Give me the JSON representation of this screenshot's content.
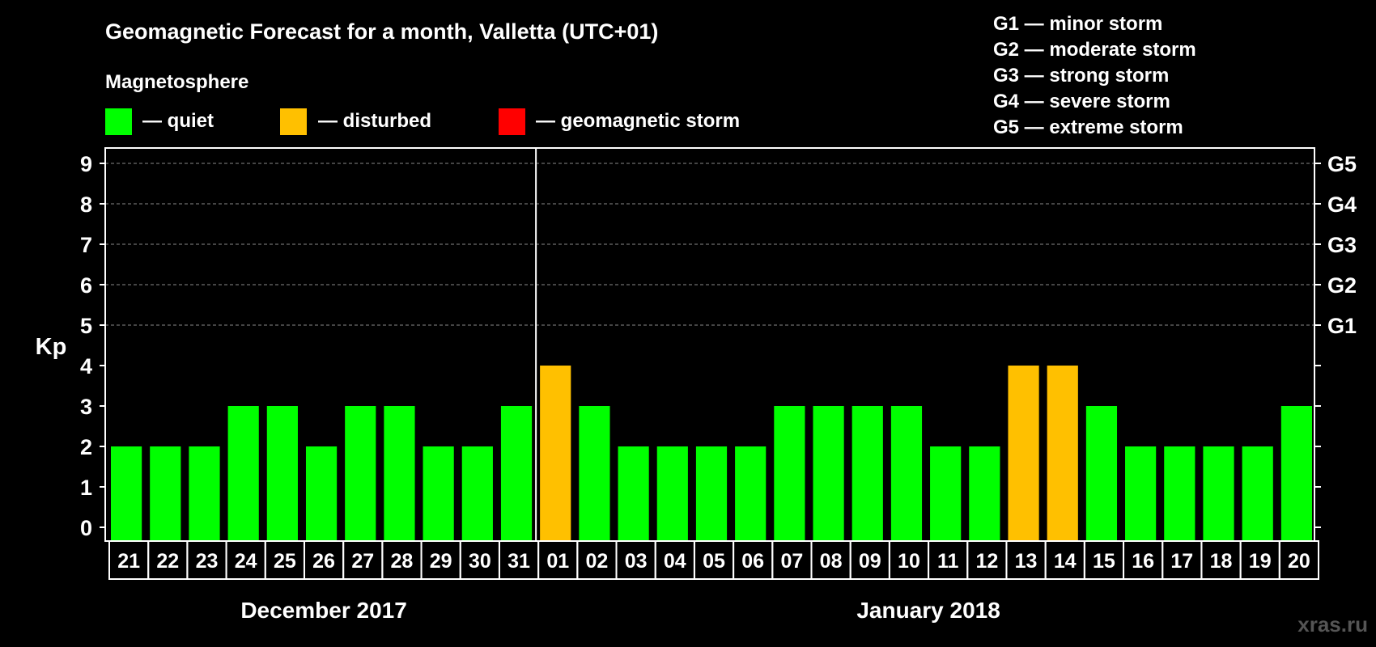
{
  "chart_data": {
    "type": "bar",
    "title": "Geomagnetic Forecast for a month, Valletta (UTC+01)",
    "legend_title": "Magnetosphere",
    "legend": [
      {
        "label": "— quiet",
        "color": "#00ff00"
      },
      {
        "label": "— disturbed",
        "color": "#ffc000"
      },
      {
        "label": "— geomagnetic storm",
        "color": "#ff0000"
      }
    ],
    "storm_scale": [
      "G1 — minor storm",
      "G2 — moderate storm",
      "G3 — strong storm",
      "G4 — severe storm",
      "G5 — extreme storm"
    ],
    "ylabel": "Kp",
    "ylim": [
      0,
      9
    ],
    "y_ticks": [
      "0",
      "1",
      "2",
      "3",
      "4",
      "5",
      "6",
      "7",
      "8",
      "9"
    ],
    "right_axis_labels": [
      {
        "kp": 5,
        "label": "G1"
      },
      {
        "kp": 6,
        "label": "G2"
      },
      {
        "kp": 7,
        "label": "G3"
      },
      {
        "kp": 8,
        "label": "G4"
      },
      {
        "kp": 9,
        "label": "G5"
      }
    ],
    "categories": [
      "21",
      "22",
      "23",
      "24",
      "25",
      "26",
      "27",
      "28",
      "29",
      "30",
      "31",
      "01",
      "02",
      "03",
      "04",
      "05",
      "06",
      "07",
      "08",
      "09",
      "10",
      "11",
      "12",
      "13",
      "14",
      "15",
      "16",
      "17",
      "18",
      "19",
      "20"
    ],
    "values": [
      2,
      2,
      2,
      3,
      3,
      2,
      3,
      3,
      2,
      2,
      3,
      4,
      3,
      2,
      2,
      2,
      2,
      3,
      3,
      3,
      3,
      2,
      2,
      4,
      4,
      3,
      2,
      2,
      2,
      2,
      3
    ],
    "months": [
      {
        "label": "December 2017",
        "first_index": 0,
        "last_index": 10
      },
      {
        "label": "January 2018",
        "first_index": 11,
        "last_index": 30
      }
    ],
    "month_divider_after_index": 10,
    "color_thresholds": {
      "quiet_below": 4,
      "storm_from": 5
    },
    "grid": true
  },
  "watermark": "xras.ru"
}
